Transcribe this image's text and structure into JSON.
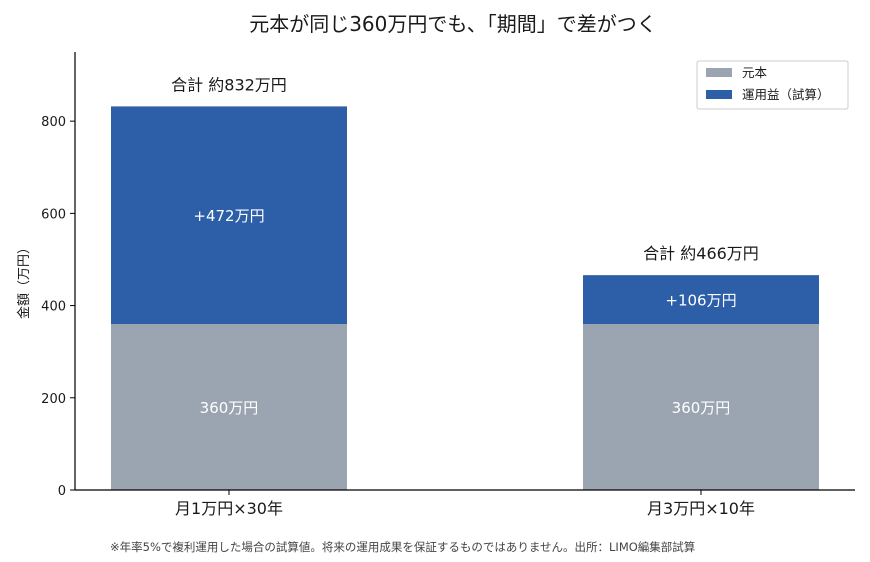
{
  "chart_data": {
    "type": "bar",
    "stacked": true,
    "title": "元本が同じ360万円でも、「期間」で差がつく",
    "ylabel": "金額（万円）",
    "xlabel": "",
    "ylim": [
      0,
      950
    ],
    "yticks": [
      0,
      200,
      400,
      600,
      800
    ],
    "categories": [
      "月1万円×30年",
      "月3万円×10年"
    ],
    "series": [
      {
        "name": "元本",
        "color": "#9aa5b1",
        "values": [
          360,
          360
        ],
        "labels": [
          "360万円",
          "360万円"
        ]
      },
      {
        "name": "運用益（試算）",
        "color": "#2d5ea8",
        "values": [
          472,
          106
        ],
        "labels": [
          "+472万円",
          "+106万円"
        ]
      }
    ],
    "totals": [
      "合計 約832万円",
      "合計 約466万円"
    ],
    "legend": "top-right",
    "grid": false
  },
  "footnote": "※年率5%で複利運用した場合の試算値。将来の運用成果を保証するものではありません。出所：LIMO編集部試算"
}
